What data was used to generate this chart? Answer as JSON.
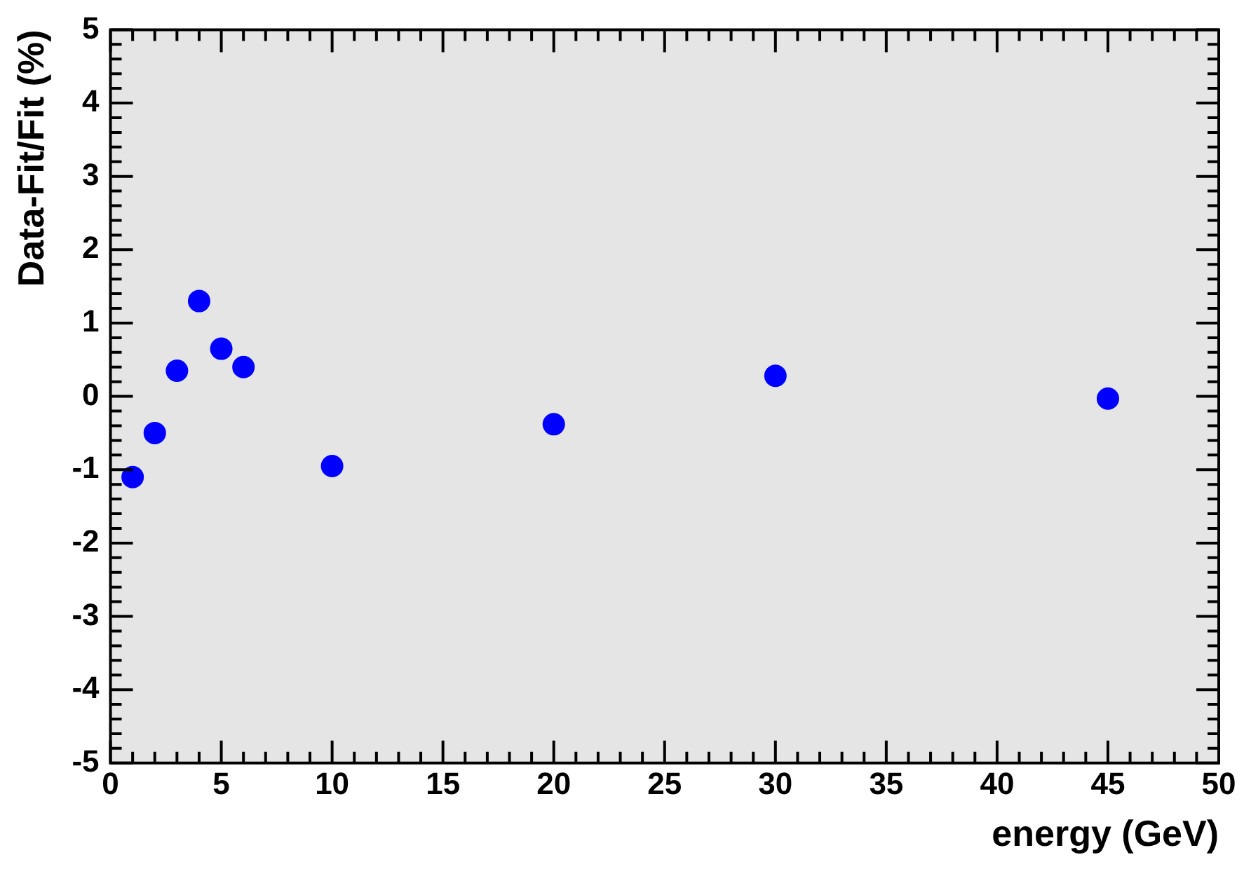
{
  "chart_data": {
    "type": "scatter",
    "xlabel": "energy (GeV)",
    "ylabel": "Data-Fit/Fit (%)",
    "series": [
      {
        "color": "#0000ff",
        "x": [
          1,
          2,
          3,
          4,
          5,
          6,
          10,
          20,
          30,
          45
        ],
        "values": [
          -1.1,
          -0.5,
          0.35,
          1.3,
          0.65,
          0.4,
          -0.95,
          -0.38,
          0.28,
          -0.03
        ]
      }
    ],
    "xlim": [
      0,
      50
    ],
    "xticks": [
      0,
      5,
      10,
      15,
      20,
      25,
      30,
      35,
      40,
      45,
      50
    ],
    "ylim": [
      -5,
      5
    ],
    "yticks": [
      -5,
      -4,
      -3,
      -2,
      -1,
      0,
      1,
      2,
      3,
      4,
      5
    ],
    "grid": false,
    "legend": false,
    "marker": "circle"
  }
}
